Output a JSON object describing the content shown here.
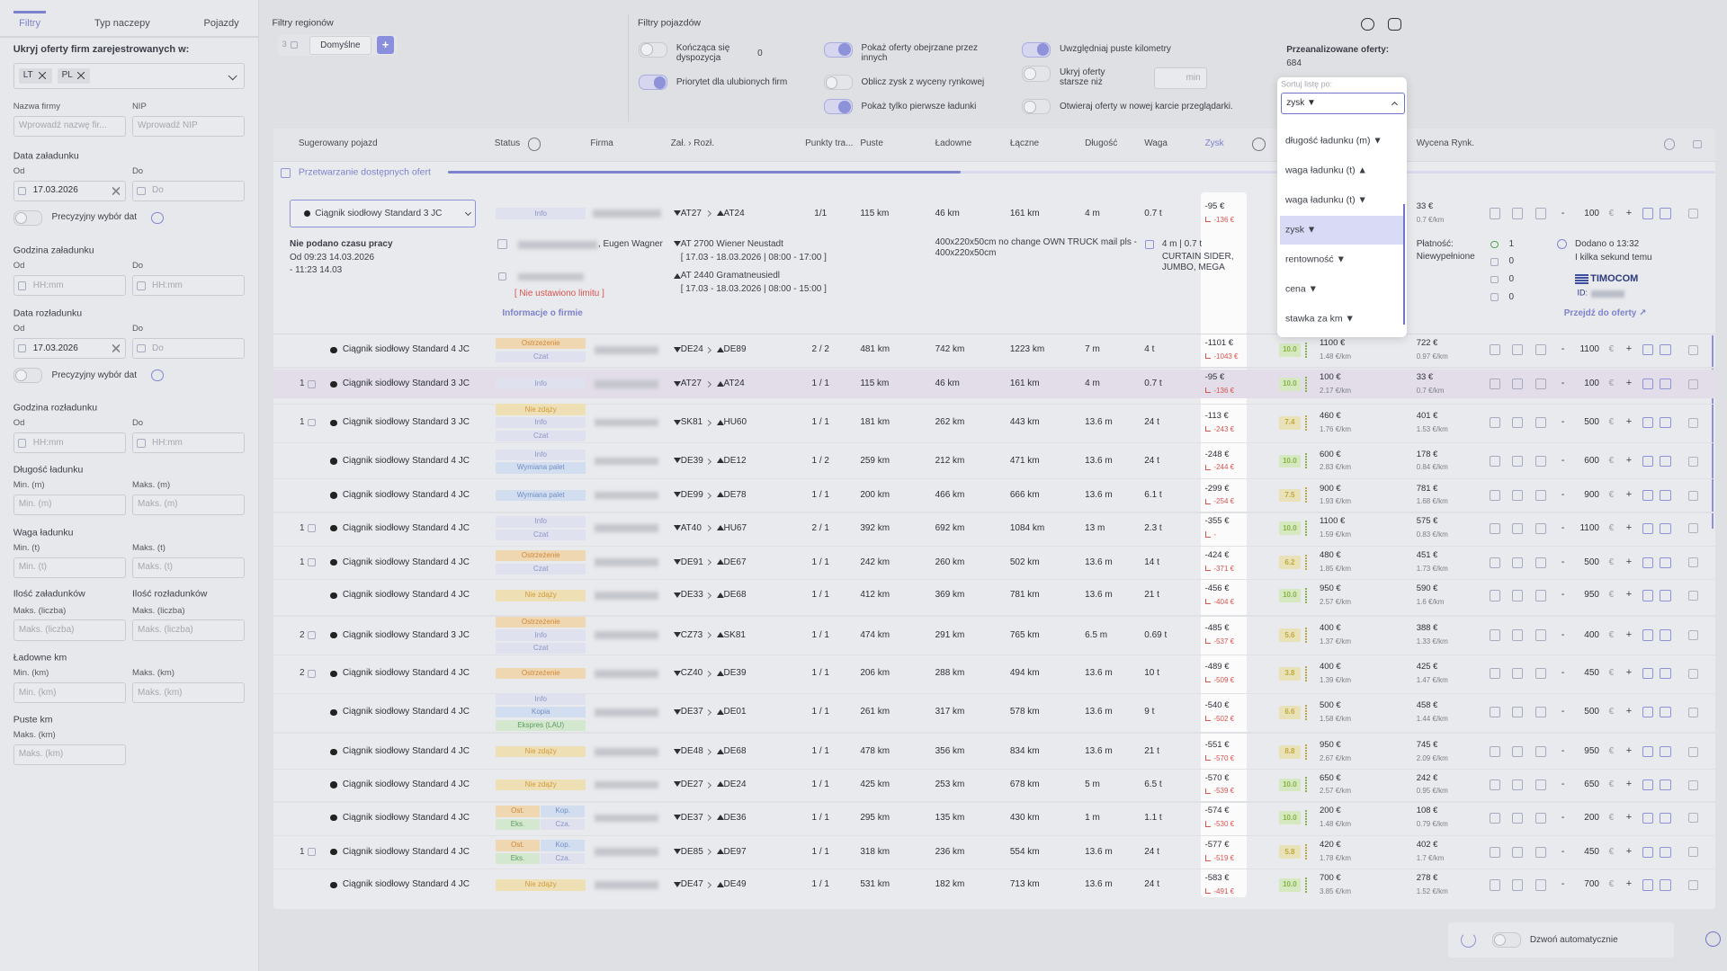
{
  "sidebar": {
    "tabs": [
      "Filtry",
      "Typ naczepy",
      "Pojazdy"
    ],
    "hide_label": "Ukryj oferty firm zarejestrowanych w:",
    "chips": [
      "LT",
      "PL"
    ],
    "sections": [
      {
        "fields": [
          {
            "label": "Nazwa firmy",
            "placeholder": "Wprowadź nazwę fir..."
          },
          {
            "label": "NIP",
            "placeholder": "Wprowadź NIP"
          }
        ]
      },
      {
        "title": "Data załadunku",
        "fields": [
          {
            "label": "Od",
            "value": "17.03.2026"
          },
          {
            "label": "Do",
            "placeholder": "Do"
          }
        ],
        "toggle": "Precyzyjny wybór dat"
      },
      {
        "title": "Godzina załadunku",
        "fields": [
          {
            "label": "Od",
            "placeholder": "HH:mm"
          },
          {
            "label": "Do",
            "placeholder": "HH:mm"
          }
        ]
      },
      {
        "title": "Data rozładunku",
        "fields": [
          {
            "label": "Od",
            "value": "17.03.2026"
          },
          {
            "label": "Do",
            "placeholder": "Do"
          }
        ],
        "toggle": "Precyzyjny wybór dat"
      },
      {
        "title": "Godzina rozładunku",
        "fields": [
          {
            "label": "Od",
            "placeholder": "HH:mm"
          },
          {
            "label": "Do",
            "placeholder": "HH:mm"
          }
        ]
      },
      {
        "title": "Długość ładunku",
        "fields": [
          {
            "label": "Min. (m)",
            "placeholder": "Min. (m)"
          },
          {
            "label": "Maks. (m)",
            "placeholder": "Maks. (m)"
          }
        ]
      },
      {
        "title": "Waga ładunku",
        "fields": [
          {
            "label": "Min. (t)",
            "placeholder": "Min. (t)"
          },
          {
            "label": "Maks. (t)",
            "placeholder": "Maks. (t)"
          }
        ]
      },
      {
        "fields": [
          {
            "title": "Ilość załadunków",
            "label": "Maks. (liczba)",
            "placeholder": "Maks. (liczba)"
          },
          {
            "title": "Ilość rozładunków",
            "label": "Maks. (liczba)",
            "placeholder": "Maks. (liczba)"
          }
        ]
      },
      {
        "title": "Ładowne km",
        "fields": [
          {
            "label": "Min. (km)",
            "placeholder": "Min. (km)"
          },
          {
            "label": "Maks. (km)",
            "placeholder": "Maks. (km)"
          }
        ]
      },
      {
        "title": "Puste km",
        "fields": [
          {
            "label": "Maks. (km)",
            "placeholder": "Maks. (km)"
          }
        ]
      }
    ]
  },
  "region_filters": {
    "title": "Filtry regionów",
    "count": "3",
    "preset": "Domyślne",
    "add": "+"
  },
  "vehicle_filters": {
    "title": "Filtry pojazdów",
    "options": [
      {
        "label": "Kończąca się dyspozycja",
        "on": false,
        "value": "0"
      },
      {
        "label": "Priorytet dla ulubionych firm",
        "on": true
      },
      {
        "label": "Pokaż oferty obejrzane przez innych",
        "on": true
      },
      {
        "label": "Oblicz zysk z wyceny rynkowej",
        "on": false
      },
      {
        "label": "Pokaż tylko pierwsze ładunki",
        "on": true
      },
      {
        "label": "Uwzględniaj puste kilometry",
        "on": true
      },
      {
        "label": "Ukryj oferty starsze niż",
        "on": false,
        "unit": "min"
      },
      {
        "label": "Otwieraj oferty w nowej karcie przeglądarki.",
        "on": false
      }
    ]
  },
  "analyzed": {
    "label": "Przeanalizowane oferty:",
    "value": "684"
  },
  "sort": {
    "label": "Sortuj listę po:",
    "selected": "zysk ▼",
    "options": [
      "długość ładunku (m) ▼",
      "waga ładunku (t) ▲",
      "waga ładunku (t) ▼",
      "zysk ▼",
      "rentowność ▼",
      "cena ▼",
      "stawka za km ▼"
    ],
    "highlighted": 3
  },
  "table": {
    "headers": [
      "Sugerowany pojazd",
      "Status",
      "Firma",
      "Zał. › Rozł.",
      "Punkty tra...",
      "Puste",
      "Ładowne",
      "Łączne",
      "Długość",
      "Waga",
      "Zysk",
      "Wycena Rynk."
    ],
    "progress": "Przetwarzanie dostępnych ofert",
    "currency": "€",
    "minus": "-",
    "plus": "+",
    "expanded": {
      "vehicle": "Ciągnik siodłowy Standard 3 JC",
      "status": "Info",
      "from": "AT27",
      "to": "AT24",
      "points": "1/1",
      "empty": "115 km",
      "loaded": "46 km",
      "total": "161 km",
      "length": "4 m",
      "weight": "0.7 t",
      "profit": "-95 €",
      "profit2": "-136 €",
      "market": "33 €",
      "market_km": "0.7 €/km",
      "input": "100",
      "work_time": [
        "Nie podano czasu pracy",
        "Od 09:23 14.03.2026",
        "- 11:23 14.03"
      ],
      "contact": ", Eugen Wagner",
      "limit": "[ Nie ustawiono limitu ]",
      "company_info": "Informacje o firmie",
      "load": "AT 2700 Wiener Neustadt",
      "load_date": "[ 17.03 - 18.03.2026 | 08:00 - 17:00 ]",
      "unload": "AT 2440 Gramatneusiedl",
      "unload_date": "[ 17.03 - 18.03.2026 | 08:00 - 15:00 ]",
      "description": "400x220x50cm no change OWN TRUCK mail pls - 400x220x50cm",
      "dims": "4 m | 0.7 t",
      "body": "CURTAIN SIDER, JUMBO, MEGA",
      "payment_label": "Płatność:",
      "payment": "Niewypełnione",
      "counts": [
        "1",
        "0",
        "0",
        "0"
      ],
      "added": "Dodano o 13:32",
      "ago": "I kilka sekund temu",
      "provider": "TIMOCOM",
      "id_label": "ID:",
      "go": "Przejdź do oferty ↗"
    },
    "rows": [
      [
        null,
        "Ciągnik siodłowy Standard 4 JC",
        [
          "Ostrzeżenie",
          "Czat"
        ],
        "DE24",
        "DE89",
        "2 / 2",
        "481 km",
        "742 km",
        "1223 km",
        "7 m",
        "4 t",
        "-1101 €",
        "-1043 €",
        "10.0",
        "1100 €",
        "1.48 €/km",
        "722 €",
        "0.97 €/km",
        "1100"
      ],
      [
        "1",
        "Ciągnik siodłowy Standard 3 JC",
        [
          "Info"
        ],
        "AT27",
        "AT24",
        "1 / 1",
        "115 km",
        "46 km",
        "161 km",
        "4 m",
        "0.7 t",
        "-95 €",
        "-136 €",
        "10.0",
        "100 €",
        "2.17 €/km",
        "33 €",
        "0.7 €/km",
        "100"
      ],
      [
        "1",
        "Ciągnik siodłowy Standard 3 JC",
        [
          "Nie zdąży",
          "Info",
          "Czat"
        ],
        "SK81",
        "HU60",
        "1 / 1",
        "181 km",
        "262 km",
        "443 km",
        "13.6 m",
        "24 t",
        "-113 €",
        "-243 €",
        "7.4",
        "460 €",
        "1.76 €/km",
        "401 €",
        "1.53 €/km",
        "500"
      ],
      [
        null,
        "Ciągnik siodłowy Standard 4 JC",
        [
          "Info",
          "Wymiana palet"
        ],
        "DE39",
        "DE12",
        "1 / 2",
        "259 km",
        "212 km",
        "471 km",
        "13.6 m",
        "24 t",
        "-248 €",
        "-244 €",
        "10.0",
        "600 €",
        "2.83 €/km",
        "178 €",
        "0.84 €/km",
        "600"
      ],
      [
        null,
        "Ciągnik siodłowy Standard 4 JC",
        [
          "Wymiana palet"
        ],
        "DE99",
        "DE78",
        "1 / 1",
        "200 km",
        "466 km",
        "666 km",
        "13.6 m",
        "6.1 t",
        "-299 €",
        "-254 €",
        "7.5",
        "900 €",
        "1.93 €/km",
        "781 €",
        "1.68 €/km",
        "900"
      ],
      [
        "1",
        "Ciągnik siodłowy Standard 4 JC",
        [
          "Info",
          "Czat"
        ],
        "AT40",
        "HU67",
        "2 / 1",
        "392 km",
        "692 km",
        "1084 km",
        "13 m",
        "2.3 t",
        "-355 €",
        "-",
        "10.0",
        "1100 €",
        "1.59 €/km",
        "575 €",
        "0.83 €/km",
        "1100"
      ],
      [
        "1",
        "Ciągnik siodłowy Standard 4 JC",
        [
          "Ostrzeżenie",
          "Czat"
        ],
        "DE91",
        "DE67",
        "1 / 1",
        "242 km",
        "260 km",
        "502 km",
        "13.6 m",
        "14 t",
        "-424 €",
        "-371 €",
        "6.2",
        "480 €",
        "1.85 €/km",
        "451 €",
        "1.73 €/km",
        "500"
      ],
      [
        null,
        "Ciągnik siodłowy Standard 4 JC",
        [
          "Nie zdąży"
        ],
        "DE33",
        "DE68",
        "1 / 1",
        "412 km",
        "369 km",
        "781 km",
        "13.6 m",
        "21 t",
        "-456 €",
        "-404 €",
        "10.0",
        "950 €",
        "2.57 €/km",
        "590 €",
        "1.6 €/km",
        "950"
      ],
      [
        "2",
        "Ciągnik siodłowy Standard 3 JC",
        [
          "Ostrzeżenie",
          "Info",
          "Czat"
        ],
        "CZ73",
        "SK81",
        "1 / 1",
        "474 km",
        "291 km",
        "765 km",
        "6.5 m",
        "0.69 t",
        "-485 €",
        "-537 €",
        "5.6",
        "400 €",
        "1.37 €/km",
        "388 €",
        "1.33 €/km",
        "400"
      ],
      [
        "2",
        "Ciągnik siodłowy Standard 4 JC",
        [
          "Ostrzeżenie"
        ],
        "CZ40",
        "DE39",
        "1 / 1",
        "206 km",
        "288 km",
        "494 km",
        "13.6 m",
        "10 t",
        "-489 €",
        "-509 €",
        "3.8",
        "400 €",
        "1.39 €/km",
        "425 €",
        "1.47 €/km",
        "450"
      ],
      [
        null,
        "Ciągnik siodłowy Standard 4 JC",
        [
          "Info",
          "Kopia",
          "Ekspres (LAU)"
        ],
        "DE37",
        "DE01",
        "1 / 1",
        "261 km",
        "317 km",
        "578 km",
        "13.6 m",
        "9 t",
        "-540 €",
        "-502 €",
        "6.6",
        "500 €",
        "1.58 €/km",
        "458 €",
        "1.44 €/km",
        "500"
      ],
      [
        null,
        "Ciągnik siodłowy Standard 4 JC",
        [
          "Nie zdąży"
        ],
        "DE48",
        "DE68",
        "1 / 1",
        "478 km",
        "356 km",
        "834 km",
        "13.6 m",
        "21 t",
        "-551 €",
        "-570 €",
        "8.8",
        "950 €",
        "2.67 €/km",
        "745 €",
        "2.09 €/km",
        "950"
      ],
      [
        null,
        "Ciągnik siodłowy Standard 4 JC",
        [
          "Nie zdąży"
        ],
        "DE27",
        "DE24",
        "1 / 1",
        "425 km",
        "253 km",
        "678 km",
        "5 m",
        "6.5 t",
        "-570 €",
        "-539 €",
        "10.0",
        "650 €",
        "2.57 €/km",
        "242 €",
        "0.95 €/km",
        "650"
      ],
      [
        null,
        "Ciągnik siodłowy Standard 4 JC",
        [
          "Ost.",
          "Kop.",
          "Eks.",
          "Cza."
        ],
        "DE37",
        "DE36",
        "1 / 1",
        "295 km",
        "135 km",
        "430 km",
        "1 m",
        "1.1 t",
        "-574 €",
        "-530 €",
        "10.0",
        "200 €",
        "1.48 €/km",
        "108 €",
        "0.79 €/km",
        "200"
      ],
      [
        "1",
        "Ciągnik siodłowy Standard 4 JC",
        [
          "Ost.",
          "Kop.",
          "Eks.",
          "Cza."
        ],
        "DE85",
        "DE97",
        "1 / 1",
        "318 km",
        "236 km",
        "554 km",
        "13.6 m",
        "24 t",
        "-577 €",
        "-519 €",
        "5.8",
        "420 €",
        "1.78 €/km",
        "402 €",
        "1.7 €/km",
        "450"
      ],
      [
        null,
        "Ciągnik siodłowy Standard 4 JC",
        [
          "Nie zdąży"
        ],
        "DE47",
        "DE49",
        "1 / 1",
        "531 km",
        "182 km",
        "713 km",
        "13.6 m",
        "24 t",
        "-583 €",
        "-491 €",
        "10.0",
        "700 €",
        "3.85 €/km",
        "278 €",
        "1.52 €/km",
        "700"
      ]
    ]
  },
  "auto_call": "Dzwoń automatycznie"
}
